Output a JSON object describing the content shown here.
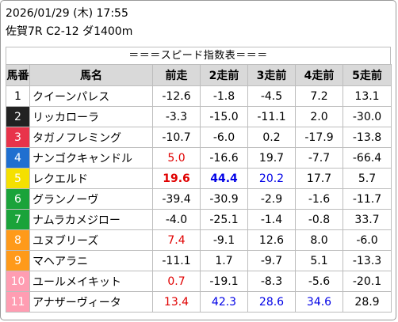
{
  "header": {
    "datetime": "2026/01/29 (木) 17:55",
    "race": "佐賀7R C2-12 ダ1400m"
  },
  "banner": "＝＝＝スピード指数表＝＝＝",
  "columns": [
    "馬番",
    "馬名",
    "前走",
    "2走前",
    "3走前",
    "4走前",
    "5走前"
  ],
  "colors": {
    "gate_1": "#ffffff",
    "gate_2": "#222222",
    "gate_3": "#e8334a",
    "gate_4": "#1f6fd0",
    "gate_5": "#f5e000",
    "gate_6": "#1aa33a",
    "gate_7": "#ff9a1a",
    "gate_8": "#ff9db2",
    "highlight_red": "#e00000",
    "highlight_blue": "#0000e6",
    "header_bg": "#d9d9d9"
  },
  "rows": [
    {
      "no": "1",
      "name": "クイーンパレス",
      "gate_bg": "#ffffff",
      "no_color": "#000000",
      "values": [
        {
          "v": "-12.6",
          "c": ""
        },
        {
          "v": "-1.8",
          "c": ""
        },
        {
          "v": "-4.5",
          "c": ""
        },
        {
          "v": "7.2",
          "c": ""
        },
        {
          "v": "13.1",
          "c": ""
        }
      ]
    },
    {
      "no": "2",
      "name": "リッカローラ",
      "gate_bg": "#222222",
      "no_color": "#ffffff",
      "values": [
        {
          "v": "-3.3",
          "c": ""
        },
        {
          "v": "-15.0",
          "c": ""
        },
        {
          "v": "-11.1",
          "c": ""
        },
        {
          "v": "2.0",
          "c": ""
        },
        {
          "v": "-30.0",
          "c": ""
        }
      ]
    },
    {
      "no": "3",
      "name": "タガノフレミング",
      "gate_bg": "#e8334a",
      "no_color": "#ffffff",
      "values": [
        {
          "v": "-10.7",
          "c": ""
        },
        {
          "v": "-6.0",
          "c": ""
        },
        {
          "v": "0.2",
          "c": ""
        },
        {
          "v": "-17.9",
          "c": ""
        },
        {
          "v": "-13.8",
          "c": ""
        }
      ]
    },
    {
      "no": "4",
      "name": "ナンゴクキャンドル",
      "gate_bg": "#1f6fd0",
      "no_color": "#ffffff",
      "values": [
        {
          "v": "5.0",
          "c": "red"
        },
        {
          "v": "-16.6",
          "c": ""
        },
        {
          "v": "19.7",
          "c": ""
        },
        {
          "v": "-7.7",
          "c": ""
        },
        {
          "v": "-66.4",
          "c": ""
        }
      ]
    },
    {
      "no": "5",
      "name": "レクエルド",
      "gate_bg": "#f5e000",
      "no_color": "#ffffff",
      "values": [
        {
          "v": "19.6",
          "c": "red bold"
        },
        {
          "v": "44.4",
          "c": "blue bold"
        },
        {
          "v": "20.2",
          "c": "blue"
        },
        {
          "v": "17.7",
          "c": ""
        },
        {
          "v": "5.7",
          "c": ""
        }
      ]
    },
    {
      "no": "6",
      "name": "グランノーヴ",
      "gate_bg": "#1aa33a",
      "no_color": "#ffffff",
      "values": [
        {
          "v": "-39.4",
          "c": ""
        },
        {
          "v": "-30.9",
          "c": ""
        },
        {
          "v": "-2.9",
          "c": ""
        },
        {
          "v": "-1.6",
          "c": ""
        },
        {
          "v": "-11.7",
          "c": ""
        }
      ]
    },
    {
      "no": "7",
      "name": "ナムラカメジロー",
      "gate_bg": "#1aa33a",
      "no_color": "#ffffff",
      "values": [
        {
          "v": "-4.0",
          "c": ""
        },
        {
          "v": "-25.1",
          "c": ""
        },
        {
          "v": "-1.4",
          "c": ""
        },
        {
          "v": "-0.8",
          "c": ""
        },
        {
          "v": "33.7",
          "c": ""
        }
      ]
    },
    {
      "no": "8",
      "name": "ユヌブリーズ",
      "gate_bg": "#ff9a1a",
      "no_color": "#ffffff",
      "values": [
        {
          "v": "7.4",
          "c": "red"
        },
        {
          "v": "-9.1",
          "c": ""
        },
        {
          "v": "12.6",
          "c": ""
        },
        {
          "v": "8.0",
          "c": ""
        },
        {
          "v": "-6.0",
          "c": ""
        }
      ]
    },
    {
      "no": "9",
      "name": "マヘアラニ",
      "gate_bg": "#ff9a1a",
      "no_color": "#ffffff",
      "values": [
        {
          "v": "-11.1",
          "c": ""
        },
        {
          "v": "1.7",
          "c": ""
        },
        {
          "v": "-9.7",
          "c": ""
        },
        {
          "v": "5.1",
          "c": ""
        },
        {
          "v": "-13.3",
          "c": ""
        }
      ]
    },
    {
      "no": "10",
      "name": "ユールメイキット",
      "gate_bg": "#ff9db2",
      "no_color": "#ffffff",
      "values": [
        {
          "v": "0.7",
          "c": "red"
        },
        {
          "v": "-19.1",
          "c": ""
        },
        {
          "v": "-8.3",
          "c": ""
        },
        {
          "v": "-5.6",
          "c": ""
        },
        {
          "v": "-20.1",
          "c": ""
        }
      ]
    },
    {
      "no": "11",
      "name": "アナザーヴィータ",
      "gate_bg": "#ff9db2",
      "no_color": "#ffffff",
      "values": [
        {
          "v": "13.4",
          "c": "red"
        },
        {
          "v": "42.3",
          "c": "blue"
        },
        {
          "v": "28.6",
          "c": "blue"
        },
        {
          "v": "34.6",
          "c": "blue"
        },
        {
          "v": "28.9",
          "c": ""
        }
      ]
    }
  ]
}
